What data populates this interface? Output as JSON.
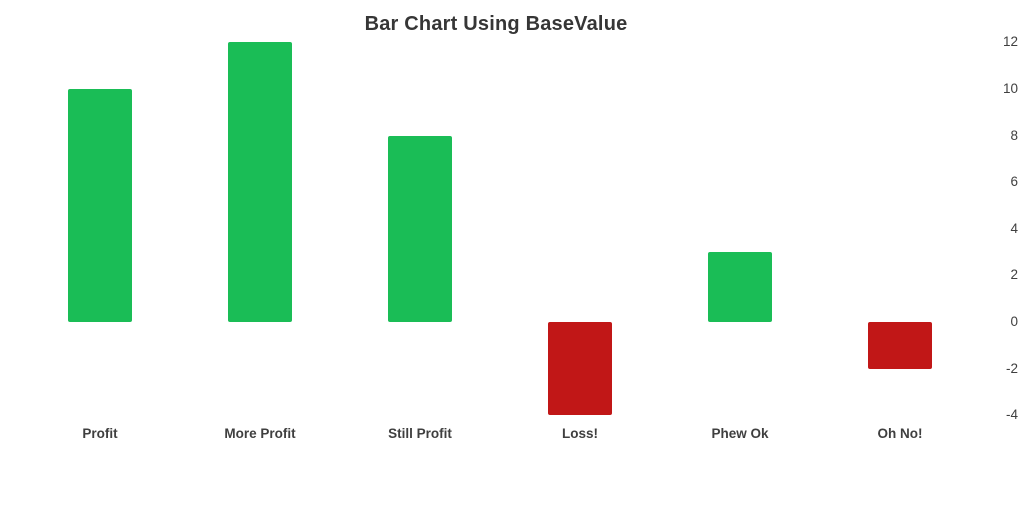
{
  "chart_data": {
    "type": "bar",
    "title": "Bar Chart Using BaseValue",
    "categories": [
      "Profit",
      "More Profit",
      "Still Profit",
      "Loss!",
      "Phew Ok",
      "Oh No!"
    ],
    "values": [
      10,
      12,
      8,
      -4,
      3,
      -2
    ],
    "base_value": 0,
    "positive_color": "#1abd56",
    "negative_color": "#c11717",
    "y_ticks": [
      12,
      10,
      8,
      6,
      4,
      2,
      0,
      -2,
      -4
    ],
    "ylim": [
      -4,
      12
    ],
    "y_axis_side": "right",
    "grid": false,
    "legend": "none",
    "xlabel": "",
    "ylabel": ""
  },
  "colors": {
    "background": "#ffffff",
    "title_text": "#363636",
    "tick_text": "#3f3f3f"
  }
}
